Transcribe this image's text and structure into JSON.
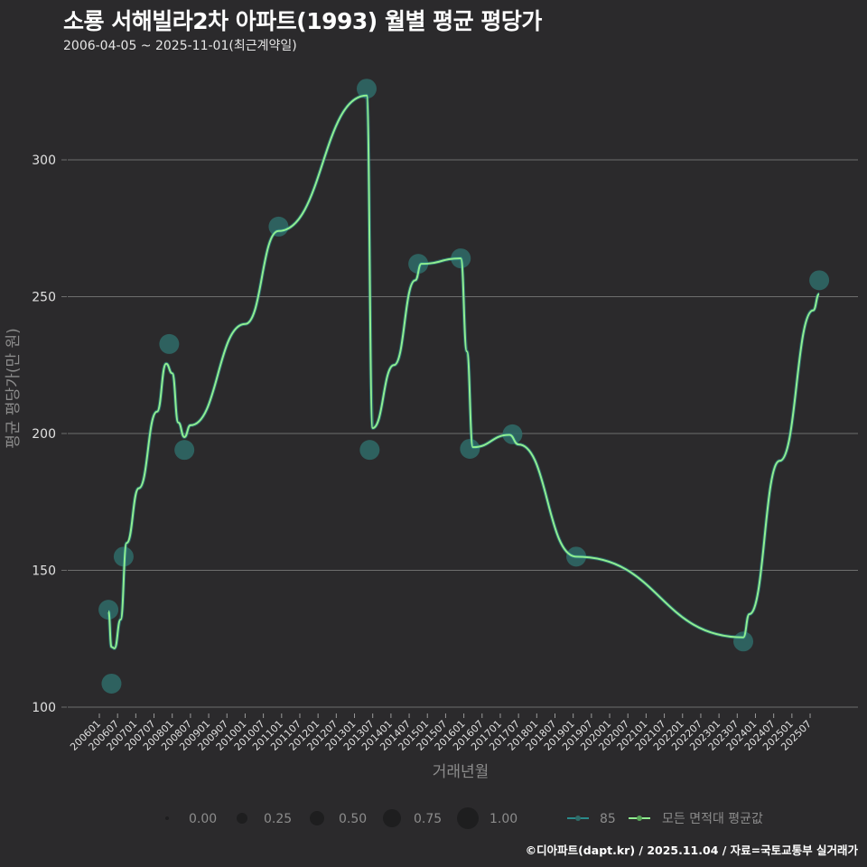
{
  "header": {
    "title": "소룡 서해빌라2차 아파트(1993) 월별 평균 평당가",
    "subtitle": "2006-04-05 ~ 2025-11-01(최근계약일)"
  },
  "caption": "©디아파트(dapt.kr) / 2025.11.04 / 자료=국토교통부 실거래가",
  "colors": {
    "background": "#2b2a2c",
    "gridline": "#6e6e6e",
    "series_85": "#2a8a8a",
    "bubble": "#2f6b68",
    "avg_line": "#90ee90",
    "legend_bubble": "#1e1e1f"
  },
  "legend": {
    "size_items": [
      "0.00",
      "0.25",
      "0.50",
      "0.75",
      "1.00"
    ],
    "series_items": [
      "85",
      "모든 면적대 평균값"
    ]
  },
  "chart_data": {
    "type": "line",
    "title": "소룡 서해빌라2차 아파트(1993) 월별 평균 평당가",
    "subtitle": "2006-04-05 ~ 2025-11-01(최근계약일)",
    "xlabel": "거래년월",
    "ylabel": "평균 평당가(만 원)",
    "ylim": [
      100,
      330
    ],
    "yticks": [
      100,
      150,
      200,
      250,
      300
    ],
    "grid": true,
    "legend_position": "bottom",
    "x_ticks": [
      "200601",
      "200607",
      "200701",
      "200707",
      "200801",
      "200807",
      "200901",
      "200907",
      "201001",
      "201007",
      "201101",
      "201107",
      "201201",
      "201207",
      "201301",
      "201307",
      "201401",
      "201407",
      "201501",
      "201507",
      "201601",
      "201607",
      "201701",
      "201707",
      "201801",
      "201807",
      "201901",
      "201907",
      "202001",
      "202007",
      "202101",
      "202107",
      "202201",
      "202207",
      "202301",
      "202307",
      "202401",
      "202407",
      "202501",
      "202507"
    ],
    "series": [
      {
        "name": "85",
        "kind": "points (size = relative volume)",
        "points": [
          {
            "x": "200604",
            "y": 135.6,
            "size": 0.75
          },
          {
            "x": "200605",
            "y": 108.6,
            "size": 0.75
          },
          {
            "x": "200609",
            "y": 155.0,
            "size": 0.75
          },
          {
            "x": "200712",
            "y": 232.7,
            "size": 0.75
          },
          {
            "x": "200805",
            "y": 194.0,
            "size": 0.75
          },
          {
            "x": "201012",
            "y": 275.6,
            "size": 0.75
          },
          {
            "x": "201305",
            "y": 326.0,
            "size": 0.75
          },
          {
            "x": "201306",
            "y": 194.0,
            "size": 0.75
          },
          {
            "x": "201410",
            "y": 262.0,
            "size": 0.75
          },
          {
            "x": "201512",
            "y": 264.0,
            "size": 0.75
          },
          {
            "x": "201603",
            "y": 194.4,
            "size": 0.75
          },
          {
            "x": "201705",
            "y": 199.7,
            "size": 0.75
          },
          {
            "x": "201902",
            "y": 155.0,
            "size": 0.75
          },
          {
            "x": "202309",
            "y": 124.0,
            "size": 0.75
          },
          {
            "x": "202510",
            "y": 256.0,
            "size": 0.75
          }
        ]
      },
      {
        "name": "모든 면적대 평균값",
        "kind": "smoothed line",
        "points": [
          {
            "x": "200604",
            "y": 135.0
          },
          {
            "x": "200605",
            "y": 122.0
          },
          {
            "x": "200606",
            "y": 121.5
          },
          {
            "x": "200608",
            "y": 132.0
          },
          {
            "x": "200610",
            "y": 160.0
          },
          {
            "x": "200702",
            "y": 180.0
          },
          {
            "x": "200708",
            "y": 208.0
          },
          {
            "x": "200711",
            "y": 225.5
          },
          {
            "x": "200801",
            "y": 222.0
          },
          {
            "x": "200803",
            "y": 204.0
          },
          {
            "x": "200805",
            "y": 198.7
          },
          {
            "x": "200807",
            "y": 203.0
          },
          {
            "x": "201001",
            "y": 240.0
          },
          {
            "x": "201012",
            "y": 274.0
          },
          {
            "x": "201305",
            "y": 323.5
          },
          {
            "x": "201307",
            "y": 202.0
          },
          {
            "x": "201402",
            "y": 225.0
          },
          {
            "x": "201409",
            "y": 256.0
          },
          {
            "x": "201411",
            "y": 262.0
          },
          {
            "x": "201512",
            "y": 264.0
          },
          {
            "x": "201602",
            "y": 230.0
          },
          {
            "x": "201604",
            "y": 195.0
          },
          {
            "x": "201704",
            "y": 199.5
          },
          {
            "x": "201707",
            "y": 196.0
          },
          {
            "x": "201902",
            "y": 155.0
          },
          {
            "x": "202309",
            "y": 125.5
          },
          {
            "x": "202311",
            "y": 134.0
          },
          {
            "x": "202409",
            "y": 190.0
          },
          {
            "x": "202508",
            "y": 245.0
          },
          {
            "x": "202510",
            "y": 251.0
          }
        ]
      }
    ]
  }
}
